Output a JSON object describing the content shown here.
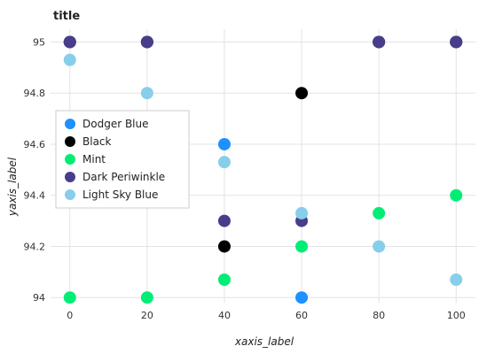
{
  "chart_data": {
    "type": "scatter",
    "title": "title",
    "xlabel": "xaxis_label",
    "ylabel": "yaxis_label",
    "xlim": [
      -5,
      105
    ],
    "ylim": [
      93.98,
      95.05
    ],
    "xticks": [
      0,
      20,
      40,
      60,
      80,
      100
    ],
    "yticks": [
      94.0,
      94.2,
      94.4,
      94.6,
      94.8,
      95.0
    ],
    "xtick_labels": [
      "0",
      "20",
      "40",
      "60",
      "80",
      "100"
    ],
    "ytick_labels": [
      "94",
      "94.2",
      "94.4",
      "94.6",
      "94.8",
      "95"
    ],
    "grid": true,
    "legend_position": "left",
    "series": [
      {
        "name": "Dodger Blue",
        "color": "#1E90FF",
        "x": [
          0,
          20,
          40,
          60,
          80,
          100
        ],
        "y": [
          95.0,
          95.0,
          94.6,
          94.0,
          95.0,
          95.0
        ]
      },
      {
        "name": "Black",
        "color": "#000000",
        "x": [
          0,
          20,
          40,
          60,
          80,
          100
        ],
        "y": [
          95.0,
          95.0,
          94.2,
          94.8,
          95.0,
          95.0
        ]
      },
      {
        "name": "Mint",
        "color": "#00EE76",
        "x": [
          0,
          20,
          40,
          60,
          80,
          100
        ],
        "y": [
          94.0,
          94.0,
          94.07,
          94.2,
          94.33,
          94.4
        ]
      },
      {
        "name": "Dark Periwinkle",
        "color": "#483D8B",
        "x": [
          0,
          20,
          40,
          60,
          80,
          100
        ],
        "y": [
          95.0,
          95.0,
          94.3,
          94.3,
          95.0,
          95.0
        ]
      },
      {
        "name": "Light Sky Blue",
        "color": "#87CEEB",
        "x": [
          0,
          20,
          40,
          60,
          80,
          100
        ],
        "y": [
          94.93,
          94.8,
          94.53,
          94.33,
          94.2,
          94.07
        ]
      }
    ]
  }
}
